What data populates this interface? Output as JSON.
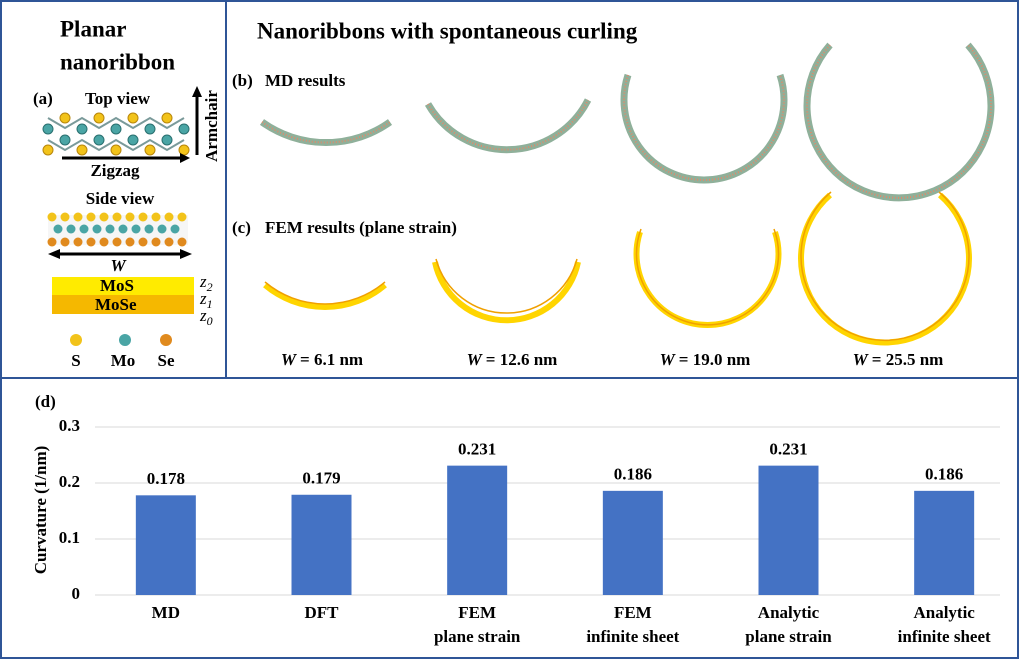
{
  "panel_top": {
    "left_title": [
      "Planar",
      "nanoribbon"
    ],
    "a_label": "(a)",
    "top_view": "Top view",
    "zigzag": "Zigzag",
    "armchair": "Armchair",
    "side_view": "Side view",
    "width_symbol": "W",
    "layers": [
      "MoS",
      "MoSe"
    ],
    "z_labels": [
      {
        "var": "z",
        "sub": "2"
      },
      {
        "var": "z",
        "sub": "1"
      },
      {
        "var": "z",
        "sub": "0"
      }
    ],
    "atoms": [
      "S",
      "Mo",
      "Se"
    ],
    "right_title": "Nanoribbons with spontaneous curling",
    "b_label": "(b)",
    "b_title": "MD results",
    "c_label": "(c)",
    "c_title": "FEM results (plane strain)",
    "widths": [
      {
        "var": "W",
        "text": "= 6.1 nm"
      },
      {
        "var": "W",
        "text": "= 12.6 nm"
      },
      {
        "var": "W",
        "text": "= 19.0 nm"
      },
      {
        "var": "W",
        "text": "= 25.5 nm"
      }
    ]
  },
  "chart_data": {
    "type": "bar",
    "panel_label": "(d)",
    "y_label": "Curvature (1/nm)",
    "categories": [
      [
        "MD"
      ],
      [
        "DFT"
      ],
      [
        "FEM",
        "plane strain"
      ],
      [
        "FEM",
        "infinite sheet"
      ],
      [
        "Analytic",
        "plane strain"
      ],
      [
        "Analytic",
        "infinite sheet"
      ]
    ],
    "values": [
      0.178,
      0.179,
      0.231,
      0.186,
      0.231,
      0.186
    ],
    "color": "#4472c4",
    "ylim": [
      0,
      0.3
    ],
    "yticks": [
      0,
      0.1,
      0.2,
      0.3
    ],
    "grid": true
  }
}
